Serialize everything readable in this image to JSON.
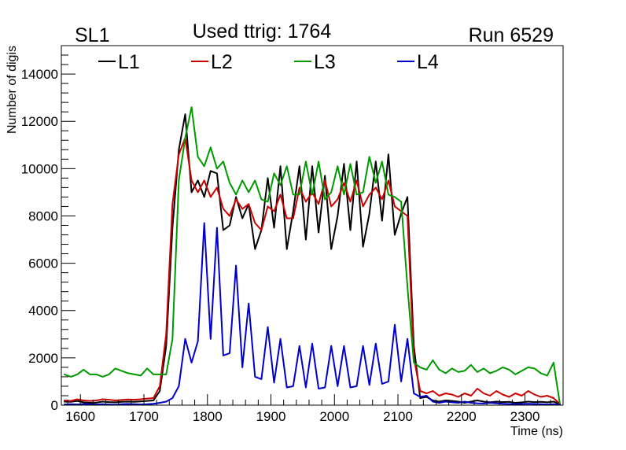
{
  "header": {
    "left": "SL1",
    "center": "Used ttrig: 1764",
    "right": "Run 6529"
  },
  "chart_data": {
    "type": "line",
    "xlabel": "Time (ns)",
    "ylabel": "Number of digis",
    "xlim": [
      1570,
      2360
    ],
    "ylim": [
      0,
      15200
    ],
    "x_ticks": [
      1600,
      1700,
      1800,
      1900,
      2000,
      2100,
      2200,
      2300
    ],
    "y_ticks": [
      0,
      2000,
      4000,
      6000,
      8000,
      10000,
      12000,
      14000
    ],
    "legend_position": "top",
    "grid": false,
    "x": [
      1575,
      1585,
      1595,
      1605,
      1615,
      1625,
      1635,
      1645,
      1655,
      1665,
      1675,
      1685,
      1695,
      1705,
      1715,
      1725,
      1735,
      1745,
      1755,
      1765,
      1775,
      1785,
      1795,
      1805,
      1815,
      1825,
      1835,
      1845,
      1855,
      1865,
      1875,
      1885,
      1895,
      1905,
      1915,
      1925,
      1935,
      1945,
      1955,
      1965,
      1975,
      1985,
      1995,
      2005,
      2015,
      2025,
      2035,
      2045,
      2055,
      2065,
      2075,
      2085,
      2095,
      2105,
      2115,
      2125,
      2135,
      2145,
      2155,
      2165,
      2175,
      2185,
      2195,
      2205,
      2215,
      2225,
      2235,
      2245,
      2255,
      2265,
      2275,
      2285,
      2295,
      2305,
      2315,
      2325,
      2335,
      2345,
      2355
    ],
    "series": [
      {
        "name": "L1",
        "color": "#000000",
        "values": [
          150,
          140,
          180,
          120,
          100,
          110,
          150,
          130,
          120,
          140,
          150,
          140,
          160,
          180,
          200,
          600,
          2500,
          7500,
          10800,
          12300,
          9000,
          9500,
          8800,
          9900,
          9800,
          7400,
          7600,
          8800,
          7900,
          8500,
          6600,
          7400,
          9600,
          7500,
          10100,
          6600,
          8200,
          10100,
          7000,
          10100,
          7300,
          9700,
          6600,
          8000,
          10200,
          7400,
          10300,
          6700,
          8100,
          10300,
          7800,
          10600,
          7200,
          8100,
          8800,
          2500,
          300,
          350,
          200,
          150,
          200,
          180,
          150,
          100,
          150,
          200,
          150,
          120,
          150,
          130,
          140,
          100,
          120,
          150,
          130,
          140,
          120,
          150,
          50
        ]
      },
      {
        "name": "L2",
        "color": "#cc0000",
        "values": [
          200,
          180,
          250,
          200,
          180,
          200,
          250,
          230,
          200,
          220,
          240,
          230,
          250,
          280,
          300,
          800,
          3000,
          8500,
          10600,
          11300,
          9500,
          9000,
          9500,
          8800,
          9200,
          8300,
          8000,
          8700,
          8300,
          8500,
          7700,
          7400,
          8400,
          8200,
          8900,
          7900,
          7900,
          9200,
          8600,
          9000,
          8500,
          9500,
          8400,
          8700,
          9400,
          8600,
          9500,
          8400,
          8900,
          9200,
          8700,
          9500,
          8400,
          8200,
          8000,
          2000,
          600,
          500,
          600,
          400,
          500,
          450,
          350,
          500,
          400,
          700,
          500,
          400,
          600,
          450,
          350,
          500,
          400,
          600,
          450,
          350,
          400,
          300,
          50
        ]
      },
      {
        "name": "L3",
        "color": "#009900",
        "values": [
          1300,
          1200,
          1300,
          1500,
          1300,
          1300,
          1200,
          1300,
          1550,
          1450,
          1350,
          1300,
          1250,
          1550,
          1300,
          1300,
          1300,
          2800,
          9500,
          11300,
          12600,
          10500,
          10100,
          10900,
          10000,
          10300,
          9400,
          8900,
          9500,
          9000,
          9500,
          8700,
          8600,
          9800,
          9300,
          10100,
          8900,
          8900,
          10300,
          8900,
          10300,
          8700,
          9000,
          10100,
          8900,
          10200,
          8900,
          9000,
          10500,
          9400,
          10300,
          8900,
          8800,
          8600,
          5000,
          1800,
          1600,
          1500,
          1900,
          1500,
          1350,
          1550,
          1400,
          1450,
          1700,
          1400,
          1550,
          1350,
          1450,
          1600,
          1500,
          1300,
          1450,
          1600,
          1550,
          1350,
          1250,
          1800,
          50
        ]
      },
      {
        "name": "L4",
        "color": "#0000cc",
        "values": [
          30,
          40,
          30,
          50,
          40,
          30,
          40,
          30,
          20,
          40,
          50,
          40,
          30,
          40,
          60,
          100,
          150,
          300,
          800,
          2800,
          1800,
          2700,
          7700,
          2800,
          7500,
          2100,
          2200,
          5900,
          1600,
          4300,
          1200,
          1100,
          3300,
          950,
          2800,
          750,
          800,
          2500,
          750,
          2600,
          700,
          750,
          2500,
          800,
          2500,
          750,
          800,
          2500,
          850,
          2600,
          900,
          1000,
          3400,
          1000,
          2800,
          500,
          350,
          400,
          150,
          100,
          150,
          120,
          100,
          150,
          100,
          80,
          70,
          100,
          80,
          60,
          50,
          40,
          50,
          60,
          50,
          40,
          30,
          40,
          20
        ]
      }
    ]
  }
}
